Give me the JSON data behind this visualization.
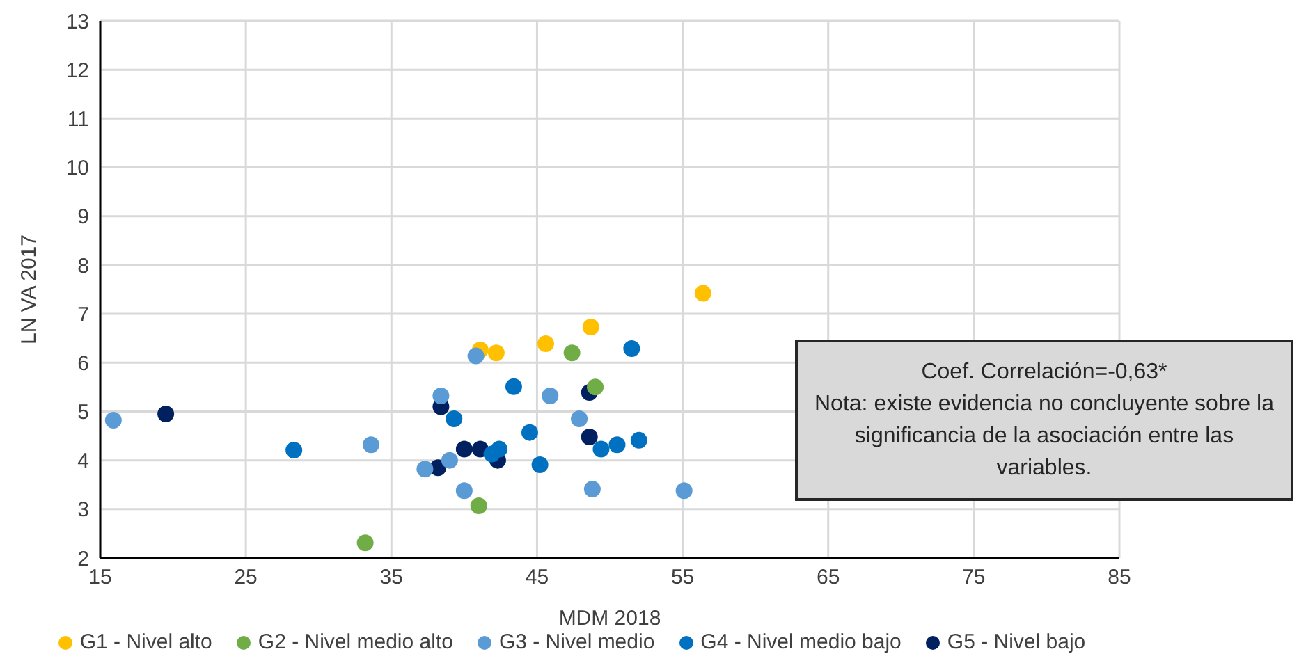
{
  "chart_data": {
    "type": "scatter",
    "xlabel": "MDM 2018",
    "ylabel": "LN VA 2017",
    "xlim": [
      15,
      85
    ],
    "xticks": [
      15,
      25,
      35,
      45,
      55,
      65,
      75,
      85
    ],
    "ylim": [
      2,
      13
    ],
    "yticks": [
      2,
      3,
      4,
      5,
      6,
      7,
      8,
      9,
      10,
      11,
      12,
      13
    ],
    "grid": true,
    "legend": "bottom",
    "marker": "circle",
    "annotations": [
      "Coef. Correlación=-0,63*",
      "Nota: existe evidencia no concluyente sobre la significancia de la asociación entre las variables."
    ],
    "series": [
      {
        "name": "G1 - Nivel alto",
        "color": "#ffc000",
        "x": [
          41.1,
          42.2,
          45.6,
          48.7,
          56.4
        ],
        "values": [
          6.26,
          6.2,
          6.39,
          6.73,
          7.42
        ]
      },
      {
        "name": "G2 - Nivel medio alto",
        "color": "#70ad47",
        "x": [
          47.4,
          49.0,
          41.0,
          33.2
        ],
        "values": [
          6.2,
          5.5,
          3.07,
          2.31
        ]
      },
      {
        "name": "G3 - Nivel medio",
        "color": "#5b9bd5",
        "x": [
          15.9,
          33.6,
          38.4,
          40.8,
          45.9,
          47.9,
          39.0,
          37.3,
          40.0,
          48.8,
          55.1
        ],
        "values": [
          4.82,
          4.32,
          5.32,
          6.14,
          5.32,
          4.85,
          4.0,
          3.82,
          3.38,
          3.41,
          3.38
        ]
      },
      {
        "name": "G4 - Nivel medio bajo",
        "color": "#0070c0",
        "x": [
          28.3,
          39.3,
          43.4,
          51.5,
          44.5,
          42.4,
          41.9,
          45.2,
          49.4,
          50.5,
          52.0
        ],
        "values": [
          4.21,
          4.85,
          5.51,
          6.29,
          4.57,
          4.23,
          4.13,
          3.91,
          4.23,
          4.32,
          4.41
        ]
      },
      {
        "name": "G5 - Nivel bajo",
        "color": "#002060",
        "x": [
          19.5,
          38.4,
          38.2,
          40.0,
          41.1,
          42.3,
          48.6,
          48.6
        ],
        "values": [
          4.95,
          5.1,
          3.85,
          4.23,
          4.23,
          4.0,
          5.39,
          4.48
        ]
      }
    ]
  }
}
